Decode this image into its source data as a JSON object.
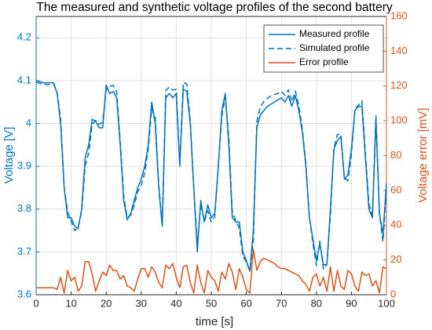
{
  "chart_data": {
    "type": "line",
    "title": "The measured and synthetic voltage profiles of the second battery",
    "x_label": "time [s]",
    "y_label": "Voltage [V]",
    "y2_label": "Voltage error [mV]",
    "x": [
      0,
      1,
      2,
      3,
      4,
      5,
      6,
      7,
      8,
      9,
      10,
      11,
      12,
      13,
      14,
      15,
      16,
      17,
      18,
      19,
      20,
      21,
      22,
      23,
      24,
      25,
      26,
      27,
      28,
      29,
      30,
      31,
      32,
      33,
      34,
      35,
      36,
      37,
      38,
      39,
      40,
      41,
      42,
      43,
      44,
      45,
      46,
      47,
      48,
      49,
      50,
      51,
      52,
      53,
      54,
      55,
      56,
      57,
      58,
      59,
      60,
      61,
      62,
      63,
      64,
      65,
      66,
      67,
      68,
      69,
      70,
      71,
      72,
      73,
      74,
      75,
      76,
      77,
      78,
      79,
      80,
      81,
      82,
      83,
      84,
      85,
      86,
      87,
      88,
      89,
      90,
      91,
      92,
      93,
      94,
      95,
      96,
      97,
      98,
      99,
      100
    ],
    "series": [
      {
        "name": "Measured profile",
        "color": "#0072BD",
        "line_style": "solid",
        "axis": "y",
        "values": [
          4.1,
          4.098,
          4.095,
          4.095,
          4.095,
          4.095,
          4.07,
          4.0,
          3.85,
          3.78,
          3.78,
          3.76,
          3.755,
          3.8,
          3.92,
          3.95,
          4.01,
          4.005,
          3.99,
          3.99,
          4.09,
          4.07,
          4.075,
          4.06,
          3.95,
          3.82,
          3.775,
          3.79,
          3.82,
          3.85,
          3.87,
          3.9,
          3.95,
          4.05,
          4.0,
          3.85,
          3.76,
          4.06,
          4.07,
          4.06,
          4.07,
          3.9,
          4.08,
          4.075,
          4.0,
          3.85,
          3.7,
          3.82,
          3.77,
          3.81,
          3.78,
          3.79,
          3.9,
          4.03,
          4.07,
          3.95,
          3.78,
          3.77,
          3.77,
          3.7,
          3.68,
          3.655,
          3.75,
          3.99,
          4.02,
          4.03,
          4.04,
          4.045,
          4.05,
          4.055,
          4.06,
          4.05,
          4.065,
          4.04,
          4.065,
          4.03,
          3.98,
          3.9,
          3.78,
          3.73,
          3.68,
          3.72,
          3.67,
          3.67,
          3.8,
          3.94,
          3.96,
          3.97,
          3.87,
          3.88,
          3.94,
          4.03,
          4.04,
          4.04,
          3.92,
          3.8,
          3.78,
          4.01,
          3.79,
          3.74,
          3.86
        ]
      },
      {
        "name": "Simulated profile",
        "color": "#0072BD",
        "line_style": "dashed",
        "axis": "y",
        "values": [
          4.096,
          4.094,
          4.091,
          4.091,
          4.091,
          4.091,
          4.073,
          4.01,
          3.851,
          3.794,
          3.772,
          3.75,
          3.757,
          3.795,
          3.901,
          3.931,
          3.998,
          4.007,
          3.998,
          4.003,
          4.079,
          4.087,
          4.089,
          4.074,
          3.959,
          3.831,
          3.78,
          3.786,
          3.809,
          3.841,
          3.855,
          3.885,
          3.94,
          4.034,
          4.013,
          3.857,
          3.764,
          4.077,
          4.085,
          4.078,
          4.08,
          3.904,
          4.096,
          4.092,
          4.007,
          3.851,
          3.717,
          3.813,
          3.771,
          3.796,
          3.77,
          3.782,
          3.898,
          4.017,
          4.061,
          3.968,
          3.793,
          3.773,
          3.755,
          3.69,
          3.677,
          3.656,
          3.724,
          4.004,
          4.039,
          4.051,
          4.059,
          4.064,
          4.068,
          4.07,
          4.075,
          4.066,
          4.079,
          4.051,
          4.076,
          4.041,
          3.986,
          3.906,
          3.782,
          3.72,
          3.668,
          3.725,
          3.66,
          3.672,
          3.784,
          3.942,
          3.974,
          3.975,
          3.873,
          3.866,
          3.928,
          4.035,
          4.042,
          4.053,
          3.931,
          3.812,
          3.785,
          4.018,
          3.791,
          3.724,
          3.845
        ]
      },
      {
        "name": "Error profile",
        "color": "#D95319",
        "line_style": "solid",
        "axis": "y2",
        "values": [
          4,
          4,
          4,
          4,
          4,
          4,
          3,
          10,
          1,
          14,
          8,
          10,
          2,
          5,
          19,
          19,
          12,
          2,
          8,
          13,
          11,
          17,
          14,
          14,
          9,
          11,
          5,
          4,
          2,
          9,
          15,
          15,
          10,
          16,
          13,
          7,
          4,
          17,
          15,
          18,
          10,
          4,
          16,
          17,
          7,
          1,
          17,
          7,
          1,
          14,
          10,
          8,
          2,
          13,
          9,
          18,
          13,
          3,
          15,
          10,
          3,
          1,
          26,
          14,
          19,
          21,
          20,
          19,
          18,
          16,
          15,
          15,
          14,
          13,
          12,
          11,
          8,
          6,
          2,
          10,
          12,
          5,
          10,
          2,
          16,
          2,
          14,
          5,
          3,
          14,
          12,
          5,
          2,
          13,
          11,
          12,
          5,
          8,
          1,
          16,
          15
        ]
      }
    ],
    "xlim": [
      0,
      100
    ],
    "xticks": [
      0,
      10,
      20,
      30,
      40,
      50,
      60,
      70,
      80,
      90,
      100
    ],
    "ylim": [
      3.6,
      4.25
    ],
    "yticks": [
      3.6,
      3.7,
      3.8,
      3.9,
      4,
      4.1,
      4.2
    ],
    "y2lim": [
      0,
      160
    ],
    "y2ticks": [
      0,
      20,
      40,
      60,
      80,
      100,
      120,
      140,
      160
    ],
    "grid": true,
    "legend": "upper right"
  }
}
